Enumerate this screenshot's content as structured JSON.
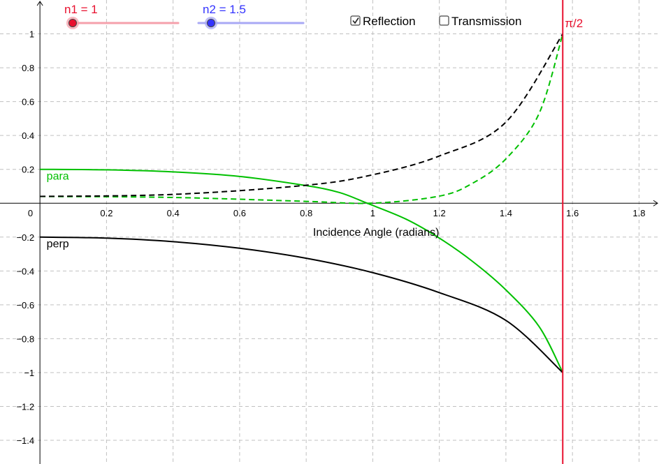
{
  "sliders": [
    {
      "id": "n1",
      "label": "n1 = 1",
      "value": 1,
      "min": 1,
      "max": 3,
      "color": "#e8102e",
      "track_color": "#f5a0ab"
    },
    {
      "id": "n2",
      "label": "n2 = 1.5",
      "value": 1.5,
      "min": 1,
      "max": 3,
      "color": "#3333ff",
      "track_color": "#a8a8f5"
    }
  ],
  "checkboxes": [
    {
      "id": "reflection",
      "label": "Reflection",
      "checked": true
    },
    {
      "id": "transmission",
      "label": "Transmission",
      "checked": false
    }
  ],
  "chart_data": {
    "type": "line",
    "xlabel": "Incidence Angle (radians)",
    "ylabel": "",
    "xlim": [
      -0.12,
      1.86
    ],
    "ylim": [
      -1.54,
      1.2
    ],
    "x_ticks": [
      0.2,
      0.4,
      0.6,
      0.8,
      1,
      1.2,
      1.4,
      1.6,
      1.8
    ],
    "x_tick_labels": [
      "0.2",
      "0.4",
      "0.6",
      "0.8",
      "1",
      "1.2",
      "1.4",
      "1.6",
      "1.8"
    ],
    "y_ticks": [
      1,
      0.8,
      0.6,
      0.4,
      0.2,
      -0.2,
      -0.4,
      -0.6,
      -0.8,
      -1,
      -1.2,
      -1.4
    ],
    "y_tick_labels": [
      "1",
      "0.8",
      "0.6",
      "0.4",
      "0.2",
      "−0.2",
      "−0.4",
      "−0.6",
      "−0.8",
      "−1",
      "−1.2",
      "−1.4"
    ],
    "origin_label": "0",
    "grid": true,
    "vertical_line": {
      "x": 1.5708,
      "label": "π/2",
      "color": "#e8102e"
    },
    "series": [
      {
        "name": "para",
        "style": "solid",
        "color": "#00c000",
        "kind": "r_parallel",
        "x": [
          0,
          0.2,
          0.4,
          0.6,
          0.8,
          0.9,
          0.983,
          1.1,
          1.2,
          1.3,
          1.4,
          1.5,
          1.5708
        ],
        "y": [
          0.2,
          0.197,
          0.185,
          0.158,
          0.104,
          0.063,
          0.0,
          -0.094,
          -0.206,
          -0.344,
          -0.512,
          -0.729,
          -1.0
        ]
      },
      {
        "name": "perp",
        "style": "solid",
        "color": "#000000",
        "kind": "r_perp",
        "x": [
          0,
          0.2,
          0.4,
          0.6,
          0.8,
          1.0,
          1.2,
          1.4,
          1.5708
        ],
        "y": [
          -0.2,
          -0.206,
          -0.227,
          -0.266,
          -0.325,
          -0.41,
          -0.528,
          -0.692,
          -1.0
        ]
      },
      {
        "name": "",
        "style": "dashed",
        "color": "#00c000",
        "kind": "R_parallel",
        "x": [
          0,
          0.4,
          0.8,
          1.0,
          1.2,
          1.3,
          1.4,
          1.5,
          1.5708
        ],
        "y": [
          0.04,
          0.034,
          0.011,
          0.0003,
          0.042,
          0.118,
          0.262,
          0.531,
          1.0
        ]
      },
      {
        "name": "",
        "style": "dashed",
        "color": "#000000",
        "kind": "R_perp",
        "x": [
          0,
          0.4,
          0.8,
          1.0,
          1.2,
          1.4,
          1.5708
        ],
        "y": [
          0.04,
          0.052,
          0.106,
          0.168,
          0.279,
          0.479,
          1.0
        ]
      }
    ],
    "annotations": [
      {
        "text": "para",
        "x": 0.02,
        "y": 0.16,
        "color": "#00c000"
      },
      {
        "text": "perp",
        "x": 0.02,
        "y": -0.24,
        "color": "#000000"
      }
    ]
  }
}
